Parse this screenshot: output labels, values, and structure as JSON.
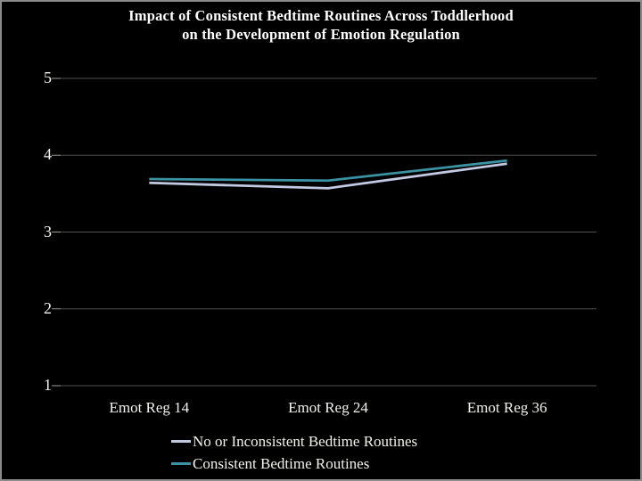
{
  "slide": {
    "title_line1": "Impact of Consistent Bedtime Routines Across Toddlerhood",
    "title_line2": "on the Development of Emotion Regulation",
    "background_color": "#000000",
    "border_color": "#8a8a8a",
    "title_color": "#ffffff"
  },
  "chart_data": {
    "type": "line",
    "title": "Impact of Consistent Bedtime Routines Across Toddlerhood on the Development of Emotion Regulation",
    "categories": [
      "Emot Reg 14",
      "Emot Reg 24",
      "Emot Reg 36"
    ],
    "series": [
      {
        "name": "No or Inconsistent Bedtime Routines",
        "values": [
          3.64,
          3.57,
          3.89
        ],
        "color": "#c2c9e2"
      },
      {
        "name": "Consistent Bedtime Routines",
        "values": [
          3.69,
          3.67,
          3.93
        ],
        "color": "#3b92a2"
      }
    ],
    "xlabel": "",
    "ylabel": "",
    "ylim": [
      1,
      5
    ],
    "yticks": [
      1,
      2,
      3,
      4,
      5
    ],
    "grid": true,
    "grid_color": "#4f4f4f",
    "tick_color": "#9b9b9b",
    "axis_label_color": "#f3f3ee",
    "legend_position": "bottom-left"
  }
}
